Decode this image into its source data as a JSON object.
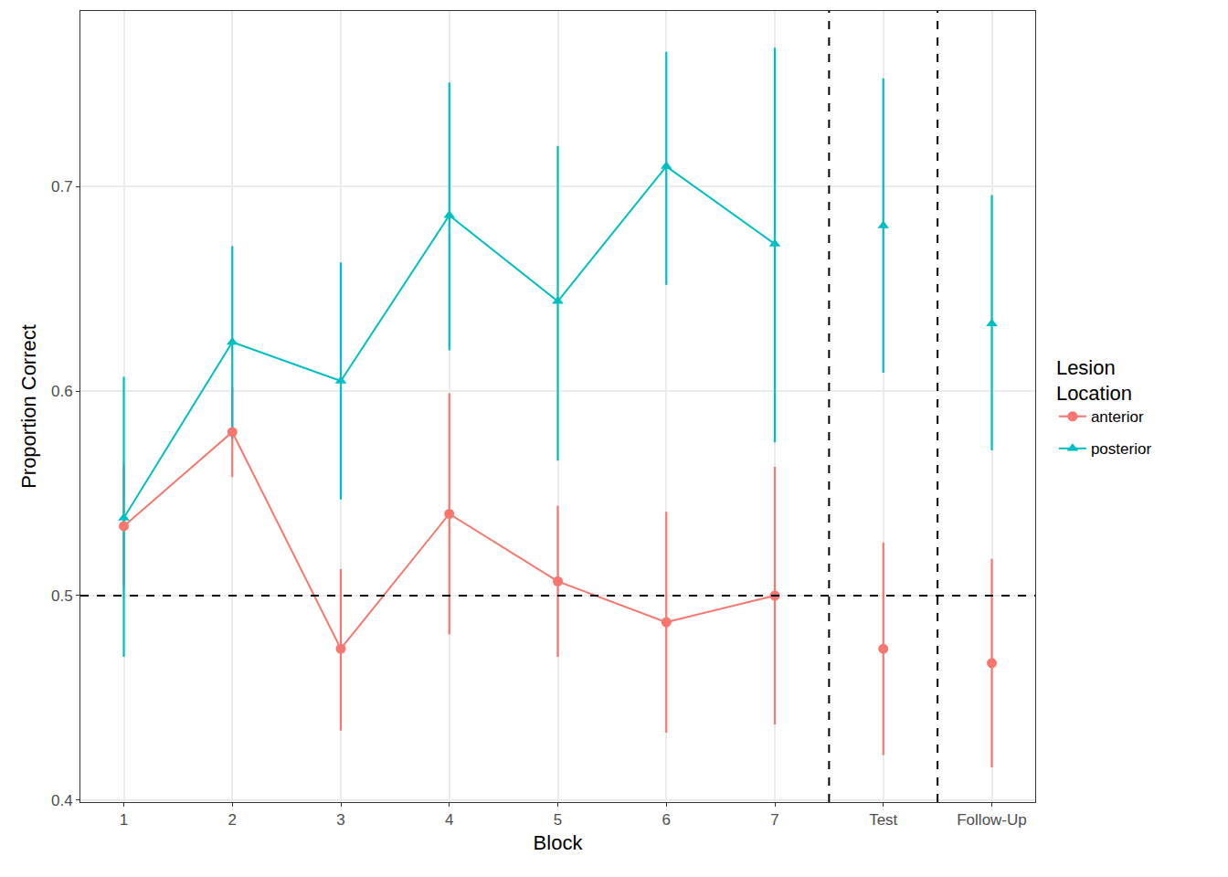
{
  "chart_data": {
    "type": "line",
    "x_label": "Block",
    "y_label": "Proportion Correct",
    "legend_title": "Lesion\nLocation",
    "legend": "right",
    "grid": true,
    "categories": [
      "1",
      "2",
      "3",
      "4",
      "5",
      "6",
      "7",
      "Test",
      "Follow-Up"
    ],
    "separators_after": [
      "7",
      "Test"
    ],
    "reference_line": 0.5,
    "ylim": [
      0.399,
      0.786
    ],
    "yticks": [
      0.4,
      0.5,
      0.6,
      0.7
    ],
    "series": [
      {
        "name": "anterior",
        "color": "#F8766D",
        "marker": "circle",
        "values": [
          0.534,
          0.58,
          0.474,
          0.54,
          0.507,
          0.487,
          0.5,
          0.474,
          0.467
        ],
        "lower": [
          0.504,
          0.558,
          0.434,
          0.481,
          0.47,
          0.433,
          0.437,
          0.422,
          0.416
        ],
        "upper": [
          0.564,
          0.602,
          0.513,
          0.599,
          0.544,
          0.541,
          0.563,
          0.526,
          0.518
        ]
      },
      {
        "name": "posterior",
        "color": "#00BFC4",
        "marker": "triangle-up",
        "values": [
          0.538,
          0.624,
          0.605,
          0.686,
          0.644,
          0.71,
          0.672,
          0.681,
          0.633
        ],
        "lower": [
          0.47,
          0.577,
          0.547,
          0.62,
          0.566,
          0.652,
          0.575,
          0.609,
          0.571
        ],
        "upper": [
          0.607,
          0.671,
          0.663,
          0.751,
          0.72,
          0.766,
          0.768,
          0.753,
          0.696
        ]
      }
    ]
  }
}
